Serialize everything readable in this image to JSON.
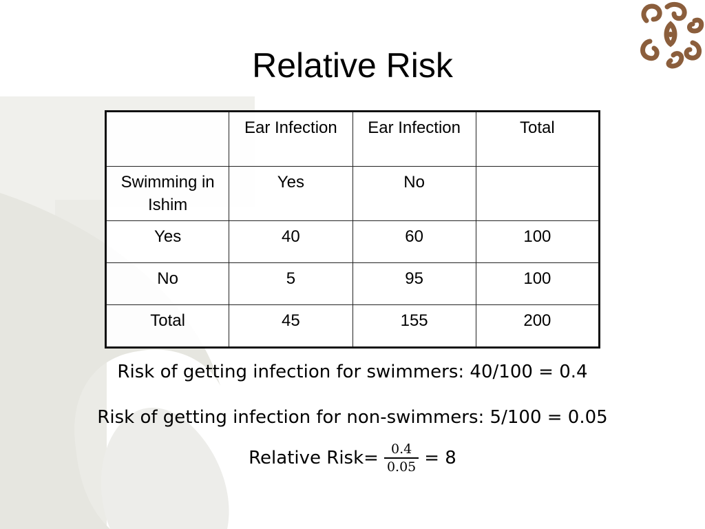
{
  "slide": {
    "title": "Relative Risk"
  },
  "table": {
    "header": [
      "",
      "Ear Infection",
      "Ear Infection",
      "Total"
    ],
    "subheader": [
      "Swimming in Ishim",
      "Yes",
      "No",
      ""
    ],
    "rows": [
      [
        "Yes",
        "40",
        "60",
        "100"
      ],
      [
        "No",
        "5",
        "95",
        "100"
      ],
      [
        "Total",
        "45",
        "155",
        "200"
      ]
    ]
  },
  "text": {
    "swimmers_risk": "Risk of getting infection for swimmers:  40/100 = 0.4",
    "non_swimmers_risk": "Risk of getting infection for non-swimmers:  5/100 = 0.05"
  },
  "formula": {
    "lhs": "Relative Risk=",
    "numerator": "0.4",
    "denominator": "0.05",
    "result": "= 8"
  },
  "colors": {
    "logo_brown": "#8b5e3c",
    "background_shape": "#e9e9e4"
  },
  "icons": {
    "logo": "ornamental-swirl-logo-icon"
  }
}
